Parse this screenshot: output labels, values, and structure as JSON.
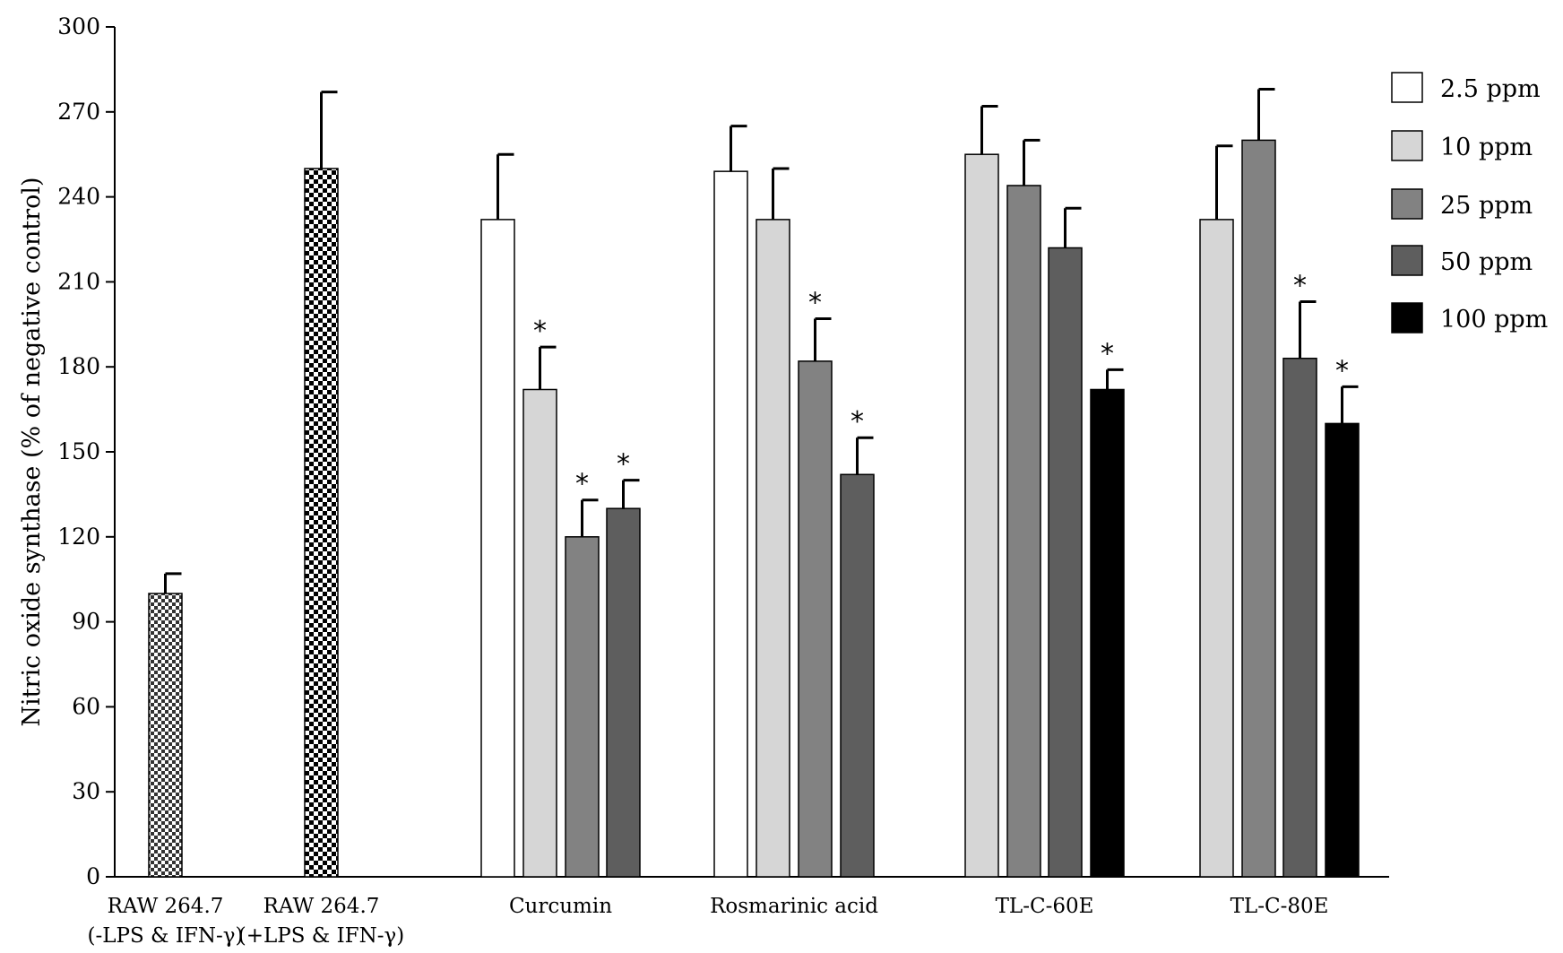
{
  "chart_data": {
    "type": "bar",
    "ylabel": "Nitric oxide synthase (% of negative control)",
    "ylim": [
      0,
      300
    ],
    "yticks": [
      0,
      30,
      60,
      90,
      120,
      150,
      180,
      210,
      240,
      270,
      300
    ],
    "legend_position": "right",
    "significance_symbol": "*",
    "legend": [
      {
        "name": "2.5 ppm",
        "color": "#ffffff"
      },
      {
        "name": "10 ppm",
        "color": "#d6d6d6"
      },
      {
        "name": "25 ppm",
        "color": "#828282"
      },
      {
        "name": "50 ppm",
        "color": "#5e5e5e"
      },
      {
        "name": "100 ppm",
        "color": "#000000"
      }
    ],
    "groups": [
      {
        "label": [
          "RAW 264.7",
          "(-LPS & IFN-γ)"
        ],
        "pattern": "checker-fine",
        "bars": [
          {
            "series": null,
            "value": 100,
            "error": 7,
            "significant": false
          }
        ]
      },
      {
        "label": [
          "RAW 264.7",
          "(+LPS & IFN-γ)"
        ],
        "pattern": "checker-coarse",
        "bars": [
          {
            "series": null,
            "value": 250,
            "error": 27,
            "significant": false
          }
        ]
      },
      {
        "label": [
          "Curcumin"
        ],
        "bars": [
          {
            "series": "2.5 ppm",
            "value": 232,
            "error": 23,
            "significant": false
          },
          {
            "series": "10 ppm",
            "value": 172,
            "error": 15,
            "significant": true
          },
          {
            "series": "25 ppm",
            "value": 120,
            "error": 13,
            "significant": true
          },
          {
            "series": "50 ppm",
            "value": 130,
            "error": 10,
            "significant": true
          }
        ]
      },
      {
        "label": [
          "Rosmarinic acid"
        ],
        "bars": [
          {
            "series": "2.5 ppm",
            "value": 249,
            "error": 16,
            "significant": false
          },
          {
            "series": "10 ppm",
            "value": 232,
            "error": 18,
            "significant": false
          },
          {
            "series": "25 ppm",
            "value": 182,
            "error": 15,
            "significant": true
          },
          {
            "series": "50 ppm",
            "value": 142,
            "error": 13,
            "significant": true
          }
        ]
      },
      {
        "label": [
          "TL-C-60E"
        ],
        "bars": [
          {
            "series": "10 ppm",
            "value": 255,
            "error": 17,
            "significant": false
          },
          {
            "series": "25 ppm",
            "value": 244,
            "error": 16,
            "significant": false
          },
          {
            "series": "50 ppm",
            "value": 222,
            "error": 14,
            "significant": false
          },
          {
            "series": "100 ppm",
            "value": 172,
            "error": 7,
            "significant": true
          }
        ]
      },
      {
        "label": [
          "TL-C-80E"
        ],
        "bars": [
          {
            "series": "10 ppm",
            "value": 232,
            "error": 26,
            "significant": false
          },
          {
            "series": "25 ppm",
            "value": 260,
            "error": 18,
            "significant": false
          },
          {
            "series": "50 ppm",
            "value": 183,
            "error": 20,
            "significant": true
          },
          {
            "series": "100 ppm",
            "value": 160,
            "error": 13,
            "significant": true
          }
        ]
      }
    ]
  }
}
